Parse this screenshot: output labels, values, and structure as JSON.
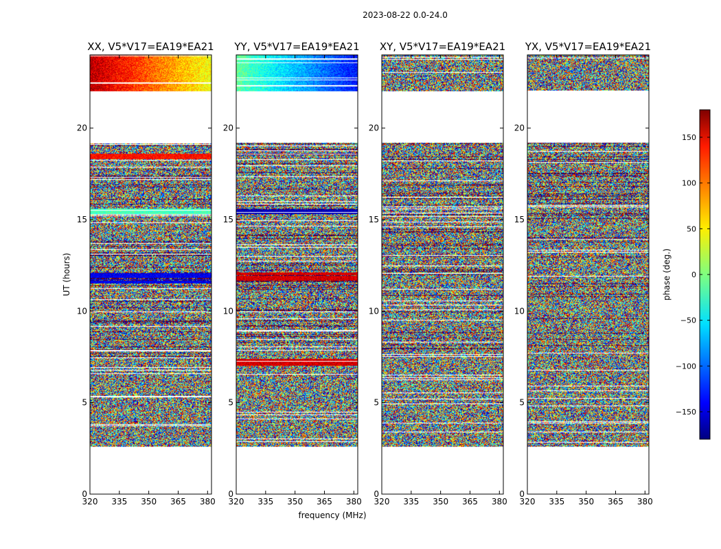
{
  "suptitle": "2023-08-22 0.0-24.0",
  "chart_data": {
    "type": "heatmap",
    "title": "2023-08-22 0.0-24.0",
    "xlabel": "frequency (MHz)",
    "ylabel": "UT (hours)",
    "colorbar_label": "phase (deg.)",
    "colormap": "jet",
    "xlim": [
      320,
      382
    ],
    "ylim": [
      0,
      24
    ],
    "xticks": [
      320,
      335,
      350,
      365,
      380
    ],
    "yticks": [
      0,
      5,
      10,
      15,
      20
    ],
    "clim": [
      -180,
      180
    ],
    "cticks": [
      -150,
      -100,
      -50,
      0,
      50,
      100,
      150
    ],
    "cticklabels": [
      "−150",
      "−100",
      "−50",
      "0",
      "50",
      "100",
      "150"
    ],
    "data_ut_ranges": [
      [
        2.6,
        19.2
      ],
      [
        22.0,
        24.0
      ]
    ],
    "panels": [
      {
        "title": "XX, V5*V17=EA19*EA21",
        "pol": "XX",
        "mode": "xx"
      },
      {
        "title": "YY, V5*V17=EA19*EA21",
        "pol": "YY",
        "mode": "yy"
      },
      {
        "title": "XY, V5*V17=EA19*EA21",
        "pol": "XY",
        "mode": "noise"
      },
      {
        "title": "YX, V5*V17=EA19*EA21",
        "pol": "YX",
        "mode": "noise"
      }
    ]
  }
}
